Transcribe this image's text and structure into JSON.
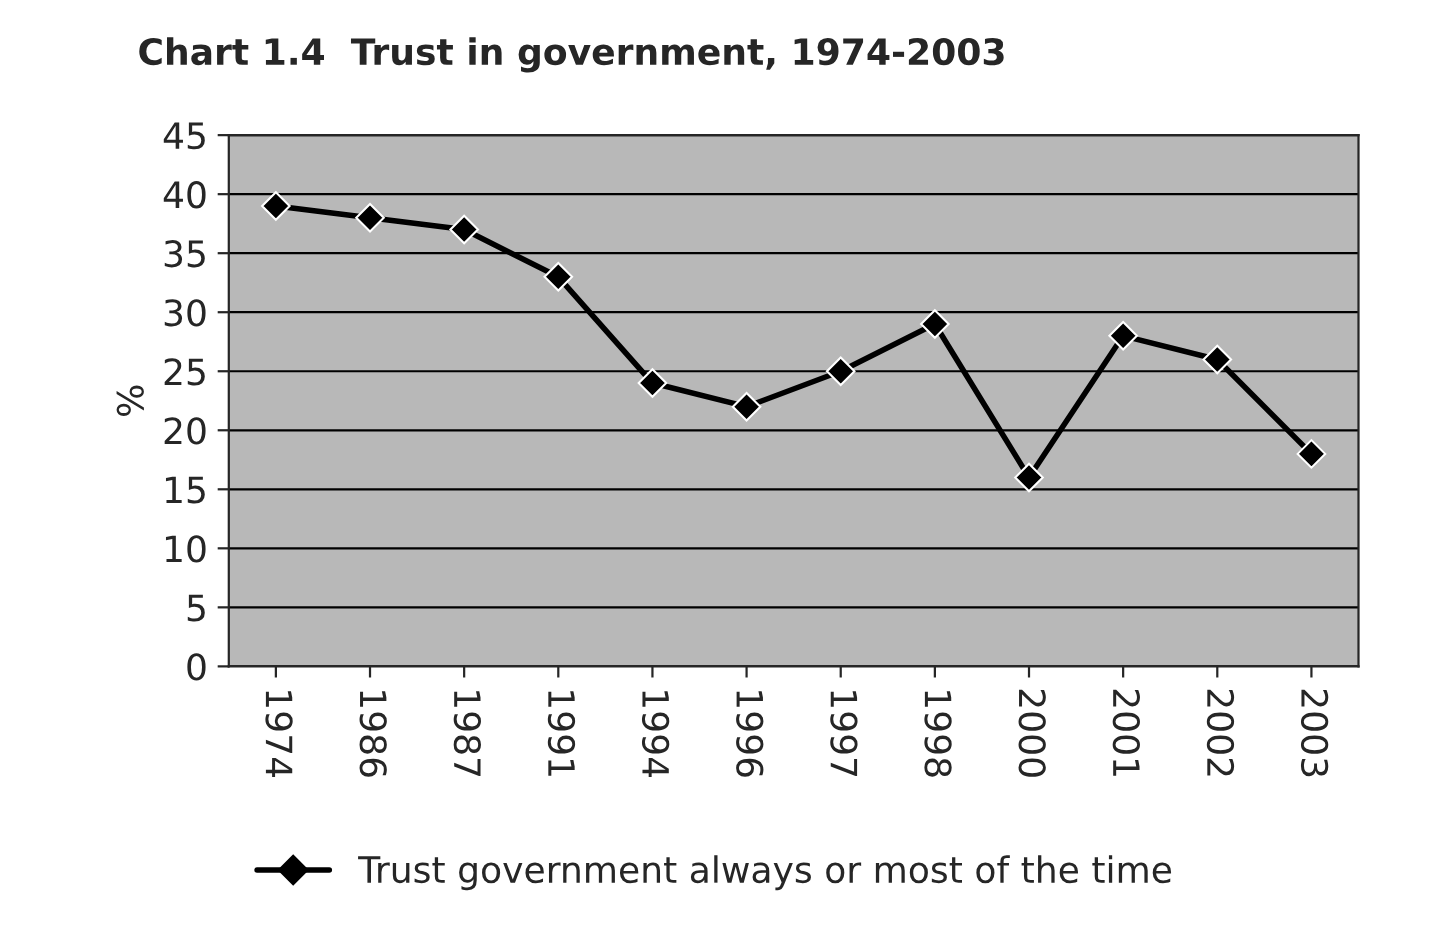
{
  "chart_data": {
    "type": "line",
    "title": "Chart 1.4  Trust in government, 1974-2003",
    "ylabel": "%",
    "categories": [
      "1974",
      "1986",
      "1987",
      "1991",
      "1994",
      "1996",
      "1997",
      "1998",
      "2000",
      "2001",
      "2002",
      "2003"
    ],
    "series": [
      {
        "name": "Trust government always or most of the time",
        "color": "#000000",
        "values": [
          39,
          38,
          37,
          33,
          24,
          22,
          25,
          29,
          16,
          28,
          26,
          18
        ]
      }
    ],
    "ylim": [
      0,
      45
    ],
    "yticks": [
      0,
      5,
      10,
      15,
      20,
      25,
      30,
      35,
      40,
      45
    ],
    "grid": "y",
    "legend": "bottom",
    "marker": "diamond",
    "line_style": "solid"
  }
}
